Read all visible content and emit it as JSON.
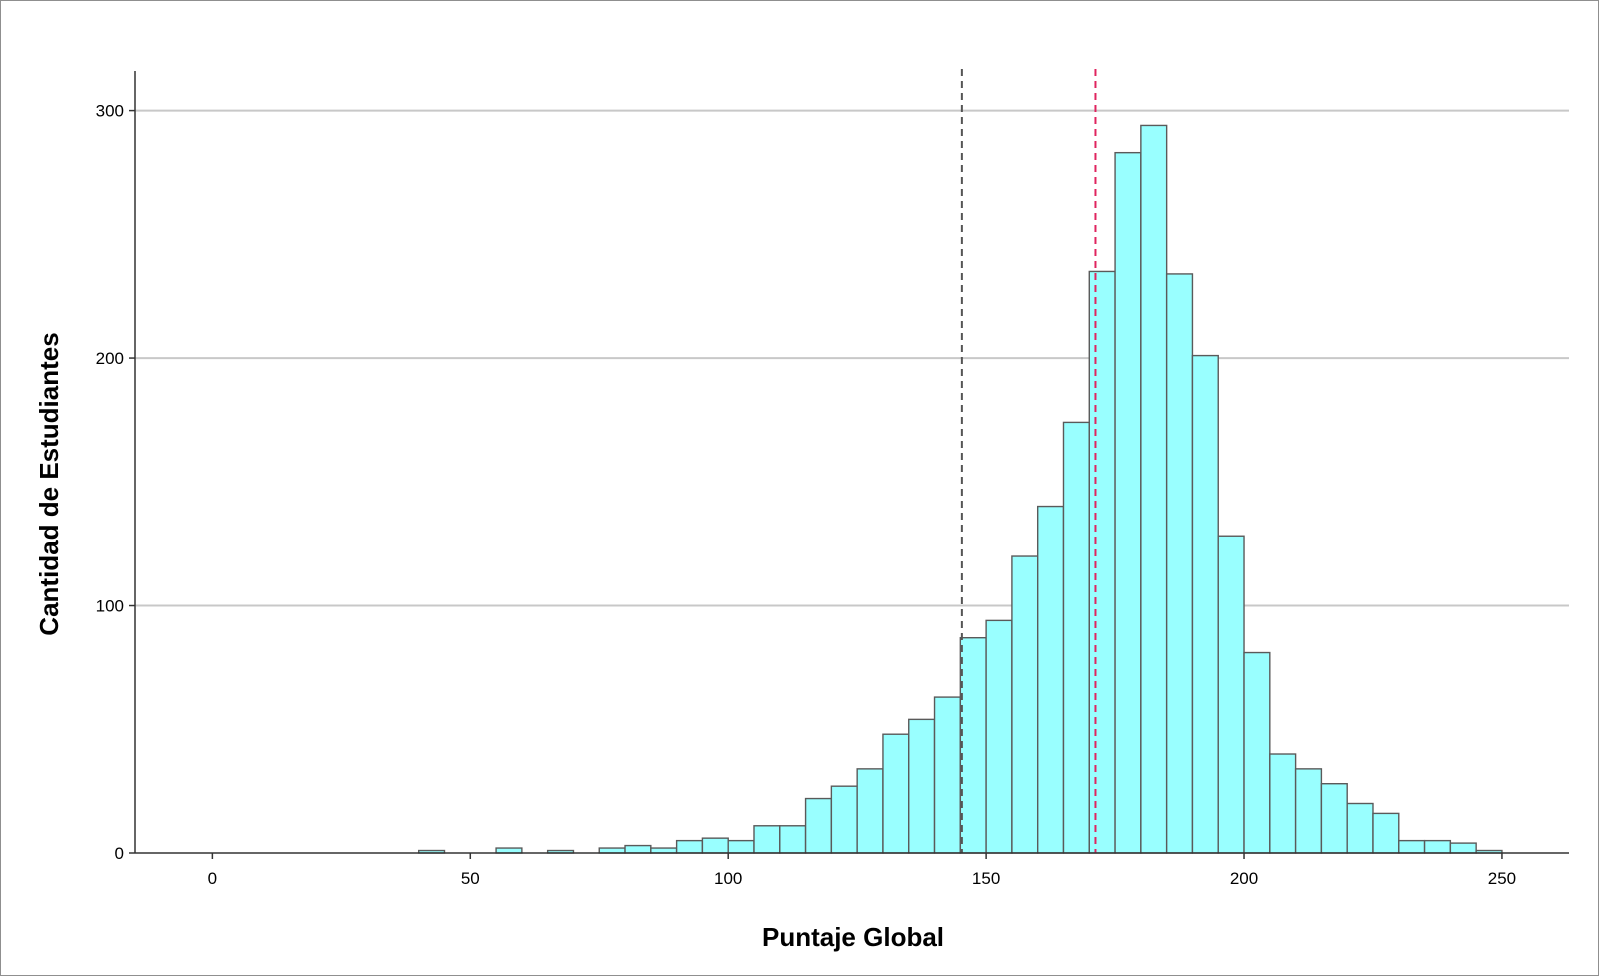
{
  "chart_data": {
    "type": "bar",
    "title": "",
    "xlabel": "Puntaje Global",
    "ylabel": "Cantidad de Estudiantes",
    "xlim": [
      -15,
      263
    ],
    "ylim": [
      0,
      316
    ],
    "bin_width": 5,
    "x_ticks": [
      0,
      50,
      100,
      150,
      200,
      250
    ],
    "y_ticks": [
      0,
      100,
      200,
      300
    ],
    "grid": "horizontal",
    "bar_color": "#99ffff",
    "bar_edge_color": "#5a5a5a",
    "bins": [
      {
        "start": 40,
        "value": 1
      },
      {
        "start": 55,
        "value": 2
      },
      {
        "start": 65,
        "value": 1
      },
      {
        "start": 75,
        "value": 2
      },
      {
        "start": 80,
        "value": 3
      },
      {
        "start": 85,
        "value": 2
      },
      {
        "start": 90,
        "value": 5
      },
      {
        "start": 95,
        "value": 6
      },
      {
        "start": 100,
        "value": 5
      },
      {
        "start": 105,
        "value": 11
      },
      {
        "start": 110,
        "value": 11
      },
      {
        "start": 115,
        "value": 22
      },
      {
        "start": 120,
        "value": 27
      },
      {
        "start": 125,
        "value": 34
      },
      {
        "start": 130,
        "value": 48
      },
      {
        "start": 135,
        "value": 54
      },
      {
        "start": 140,
        "value": 63
      },
      {
        "start": 145,
        "value": 87
      },
      {
        "start": 150,
        "value": 94
      },
      {
        "start": 155,
        "value": 120
      },
      {
        "start": 160,
        "value": 140
      },
      {
        "start": 165,
        "value": 174
      },
      {
        "start": 170,
        "value": 235
      },
      {
        "start": 175,
        "value": 283
      },
      {
        "start": 180,
        "value": 294
      },
      {
        "start": 185,
        "value": 234
      },
      {
        "start": 190,
        "value": 201
      },
      {
        "start": 195,
        "value": 128
      },
      {
        "start": 200,
        "value": 81
      },
      {
        "start": 205,
        "value": 40
      },
      {
        "start": 210,
        "value": 34
      },
      {
        "start": 215,
        "value": 28
      },
      {
        "start": 220,
        "value": 20
      },
      {
        "start": 225,
        "value": 16
      },
      {
        "start": 230,
        "value": 5
      },
      {
        "start": 235,
        "value": 5
      },
      {
        "start": 240,
        "value": 4
      },
      {
        "start": 245,
        "value": 1
      }
    ],
    "reference_lines": [
      {
        "x": 145.3,
        "color": "#555555",
        "style": "dashed"
      },
      {
        "x": 171.2,
        "color": "#e0245e",
        "style": "dashed"
      }
    ]
  }
}
